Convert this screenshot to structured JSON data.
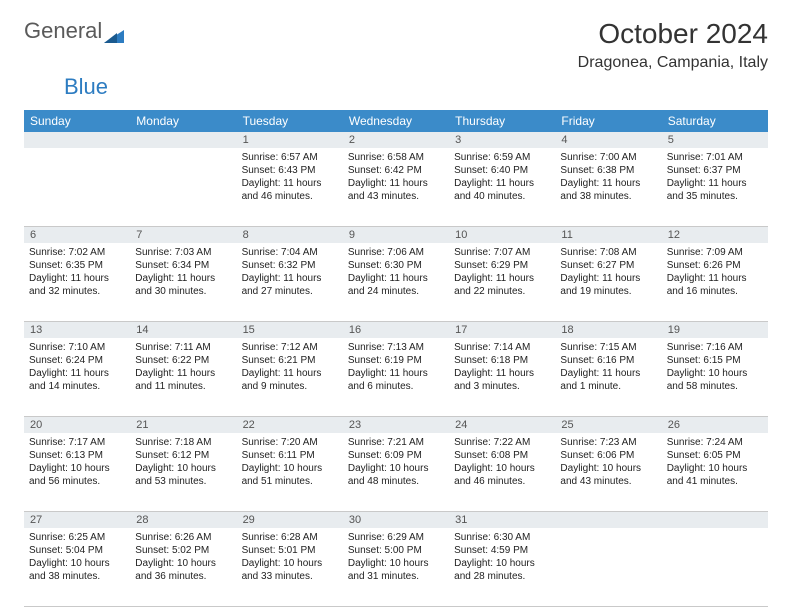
{
  "logo": {
    "text1": "General",
    "text2": "Blue"
  },
  "title": "October 2024",
  "location": "Dragonea, Campania, Italy",
  "colors": {
    "header_bg": "#3b8bc9",
    "daynum_bg": "#e8ecef",
    "border": "#c9c9c9",
    "text": "#333333",
    "logo_blue": "#2d7cc1"
  },
  "daynames": [
    "Sunday",
    "Monday",
    "Tuesday",
    "Wednesday",
    "Thursday",
    "Friday",
    "Saturday"
  ],
  "weeks": [
    [
      {
        "n": "",
        "sr": "",
        "ss": "",
        "dl": ""
      },
      {
        "n": "",
        "sr": "",
        "ss": "",
        "dl": ""
      },
      {
        "n": "1",
        "sr": "Sunrise: 6:57 AM",
        "ss": "Sunset: 6:43 PM",
        "dl": "Daylight: 11 hours and 46 minutes."
      },
      {
        "n": "2",
        "sr": "Sunrise: 6:58 AM",
        "ss": "Sunset: 6:42 PM",
        "dl": "Daylight: 11 hours and 43 minutes."
      },
      {
        "n": "3",
        "sr": "Sunrise: 6:59 AM",
        "ss": "Sunset: 6:40 PM",
        "dl": "Daylight: 11 hours and 40 minutes."
      },
      {
        "n": "4",
        "sr": "Sunrise: 7:00 AM",
        "ss": "Sunset: 6:38 PM",
        "dl": "Daylight: 11 hours and 38 minutes."
      },
      {
        "n": "5",
        "sr": "Sunrise: 7:01 AM",
        "ss": "Sunset: 6:37 PM",
        "dl": "Daylight: 11 hours and 35 minutes."
      }
    ],
    [
      {
        "n": "6",
        "sr": "Sunrise: 7:02 AM",
        "ss": "Sunset: 6:35 PM",
        "dl": "Daylight: 11 hours and 32 minutes."
      },
      {
        "n": "7",
        "sr": "Sunrise: 7:03 AM",
        "ss": "Sunset: 6:34 PM",
        "dl": "Daylight: 11 hours and 30 minutes."
      },
      {
        "n": "8",
        "sr": "Sunrise: 7:04 AM",
        "ss": "Sunset: 6:32 PM",
        "dl": "Daylight: 11 hours and 27 minutes."
      },
      {
        "n": "9",
        "sr": "Sunrise: 7:06 AM",
        "ss": "Sunset: 6:30 PM",
        "dl": "Daylight: 11 hours and 24 minutes."
      },
      {
        "n": "10",
        "sr": "Sunrise: 7:07 AM",
        "ss": "Sunset: 6:29 PM",
        "dl": "Daylight: 11 hours and 22 minutes."
      },
      {
        "n": "11",
        "sr": "Sunrise: 7:08 AM",
        "ss": "Sunset: 6:27 PM",
        "dl": "Daylight: 11 hours and 19 minutes."
      },
      {
        "n": "12",
        "sr": "Sunrise: 7:09 AM",
        "ss": "Sunset: 6:26 PM",
        "dl": "Daylight: 11 hours and 16 minutes."
      }
    ],
    [
      {
        "n": "13",
        "sr": "Sunrise: 7:10 AM",
        "ss": "Sunset: 6:24 PM",
        "dl": "Daylight: 11 hours and 14 minutes."
      },
      {
        "n": "14",
        "sr": "Sunrise: 7:11 AM",
        "ss": "Sunset: 6:22 PM",
        "dl": "Daylight: 11 hours and 11 minutes."
      },
      {
        "n": "15",
        "sr": "Sunrise: 7:12 AM",
        "ss": "Sunset: 6:21 PM",
        "dl": "Daylight: 11 hours and 9 minutes."
      },
      {
        "n": "16",
        "sr": "Sunrise: 7:13 AM",
        "ss": "Sunset: 6:19 PM",
        "dl": "Daylight: 11 hours and 6 minutes."
      },
      {
        "n": "17",
        "sr": "Sunrise: 7:14 AM",
        "ss": "Sunset: 6:18 PM",
        "dl": "Daylight: 11 hours and 3 minutes."
      },
      {
        "n": "18",
        "sr": "Sunrise: 7:15 AM",
        "ss": "Sunset: 6:16 PM",
        "dl": "Daylight: 11 hours and 1 minute."
      },
      {
        "n": "19",
        "sr": "Sunrise: 7:16 AM",
        "ss": "Sunset: 6:15 PM",
        "dl": "Daylight: 10 hours and 58 minutes."
      }
    ],
    [
      {
        "n": "20",
        "sr": "Sunrise: 7:17 AM",
        "ss": "Sunset: 6:13 PM",
        "dl": "Daylight: 10 hours and 56 minutes."
      },
      {
        "n": "21",
        "sr": "Sunrise: 7:18 AM",
        "ss": "Sunset: 6:12 PM",
        "dl": "Daylight: 10 hours and 53 minutes."
      },
      {
        "n": "22",
        "sr": "Sunrise: 7:20 AM",
        "ss": "Sunset: 6:11 PM",
        "dl": "Daylight: 10 hours and 51 minutes."
      },
      {
        "n": "23",
        "sr": "Sunrise: 7:21 AM",
        "ss": "Sunset: 6:09 PM",
        "dl": "Daylight: 10 hours and 48 minutes."
      },
      {
        "n": "24",
        "sr": "Sunrise: 7:22 AM",
        "ss": "Sunset: 6:08 PM",
        "dl": "Daylight: 10 hours and 46 minutes."
      },
      {
        "n": "25",
        "sr": "Sunrise: 7:23 AM",
        "ss": "Sunset: 6:06 PM",
        "dl": "Daylight: 10 hours and 43 minutes."
      },
      {
        "n": "26",
        "sr": "Sunrise: 7:24 AM",
        "ss": "Sunset: 6:05 PM",
        "dl": "Daylight: 10 hours and 41 minutes."
      }
    ],
    [
      {
        "n": "27",
        "sr": "Sunrise: 6:25 AM",
        "ss": "Sunset: 5:04 PM",
        "dl": "Daylight: 10 hours and 38 minutes."
      },
      {
        "n": "28",
        "sr": "Sunrise: 6:26 AM",
        "ss": "Sunset: 5:02 PM",
        "dl": "Daylight: 10 hours and 36 minutes."
      },
      {
        "n": "29",
        "sr": "Sunrise: 6:28 AM",
        "ss": "Sunset: 5:01 PM",
        "dl": "Daylight: 10 hours and 33 minutes."
      },
      {
        "n": "30",
        "sr": "Sunrise: 6:29 AM",
        "ss": "Sunset: 5:00 PM",
        "dl": "Daylight: 10 hours and 31 minutes."
      },
      {
        "n": "31",
        "sr": "Sunrise: 6:30 AM",
        "ss": "Sunset: 4:59 PM",
        "dl": "Daylight: 10 hours and 28 minutes."
      },
      {
        "n": "",
        "sr": "",
        "ss": "",
        "dl": ""
      },
      {
        "n": "",
        "sr": "",
        "ss": "",
        "dl": ""
      }
    ]
  ]
}
